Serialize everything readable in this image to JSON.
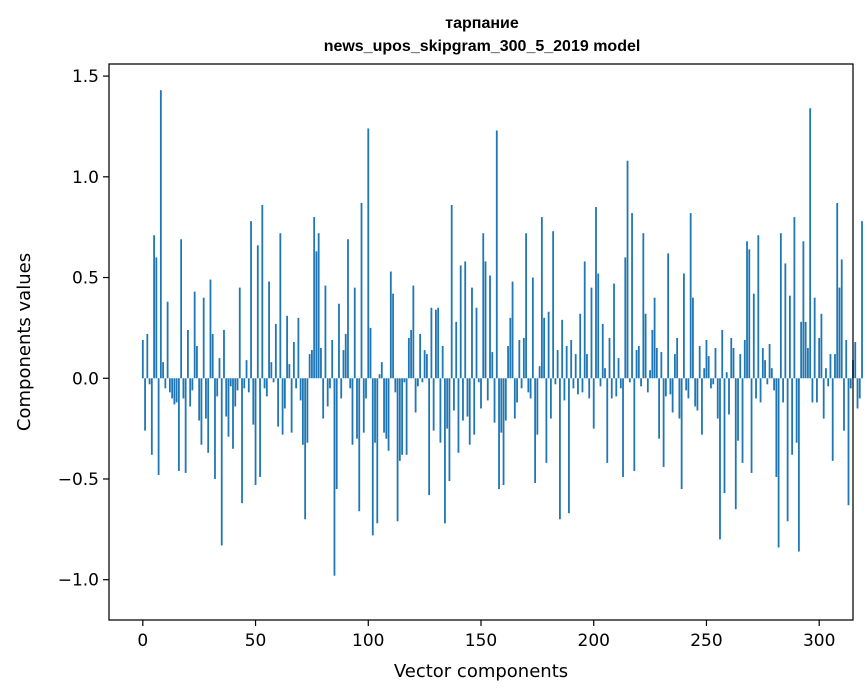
{
  "chart_data": {
    "type": "bar",
    "title": "тарпание",
    "subtitle": "news_upos_skipgram_300_5_2019 model",
    "xlabel": "Vector components",
    "ylabel": "Components values",
    "xlim": [
      -15,
      315
    ],
    "ylim": [
      -1.2,
      1.56
    ],
    "xticks": [
      0,
      50,
      100,
      150,
      200,
      250,
      300
    ],
    "xtick_labels": [
      "0",
      "50",
      "100",
      "150",
      "200",
      "250",
      "300"
    ],
    "yticks": [
      -1.0,
      -0.5,
      0.0,
      0.5,
      1.0,
      1.5
    ],
    "ytick_labels": [
      "−1.0",
      "−0.5",
      "0.0",
      "0.5",
      "1.0",
      "1.5"
    ],
    "grid": false,
    "bar_color": "#1f77b4",
    "categories_start": 0,
    "values": [
      0.19,
      -0.26,
      0.22,
      -0.03,
      -0.38,
      0.71,
      0.6,
      -0.48,
      1.43,
      0.08,
      -0.05,
      0.38,
      -0.07,
      -0.1,
      -0.13,
      -0.12,
      -0.46,
      0.69,
      -0.1,
      -0.47,
      0.24,
      -0.14,
      -0.06,
      0.43,
      0.16,
      -0.21,
      -0.33,
      0.4,
      -0.2,
      -0.37,
      0.49,
      0.22,
      -0.5,
      -0.09,
      0.1,
      -0.83,
      0.24,
      -0.19,
      -0.29,
      -0.04,
      -0.35,
      -0.14,
      -0.06,
      0.45,
      -0.62,
      -0.05,
      0.09,
      -0.07,
      0.78,
      -0.23,
      -0.53,
      0.66,
      -0.49,
      0.86,
      -0.05,
      -0.09,
      0.48,
      0.08,
      -0.02,
      0.27,
      -0.24,
      0.72,
      -0.28,
      -0.15,
      0.31,
      0.07,
      -0.27,
      0.18,
      -0.05,
      0.3,
      -0.11,
      -0.33,
      -0.7,
      -0.32,
      0.12,
      0.14,
      0.8,
      0.63,
      0.72,
      0.15,
      -0.2,
      0.46,
      -0.14,
      -0.05,
      0.19,
      -0.98,
      -0.55,
      0.37,
      -0.1,
      0.14,
      0.22,
      0.69,
      -0.05,
      -0.33,
      0.45,
      -0.3,
      -0.66,
      0.87,
      -0.27,
      -0.1,
      1.24,
      0.25,
      -0.78,
      -0.32,
      -0.72,
      0.02,
      0.08,
      -0.27,
      -0.3,
      -0.36,
      0.53,
      0.42,
      -0.07,
      -0.71,
      -0.41,
      -0.38,
      -0.02,
      -0.38,
      0.2,
      0.24,
      0.46,
      -0.17,
      -0.04,
      0.22,
      -0.02,
      0.14,
      0.12,
      -0.58,
      0.35,
      -0.26,
      0.34,
      0.35,
      -0.32,
      0.16,
      -0.72,
      -0.25,
      -0.51,
      0.86,
      -0.16,
      0.28,
      -0.37,
      0.56,
      -0.21,
      0.58,
      -0.19,
      -0.33,
      0.45,
      -0.28,
      0.35,
      -0.02,
      -0.15,
      0.72,
      0.58,
      -0.11,
      0.51,
      0.13,
      -0.22,
      1.23,
      -0.55,
      -0.27,
      -0.53,
      -0.21,
      0.16,
      0.3,
      0.48,
      -0.2,
      -0.12,
      0.19,
      -0.05,
      0.2,
      0.72,
      -0.07,
      -0.1,
      0.5,
      -0.52,
      -0.28,
      0.06,
      0.8,
      0.3,
      -0.42,
      0.33,
      -0.2,
      0.73,
      -0.03,
      0.14,
      -0.7,
      0.29,
      -0.11,
      0.16,
      -0.67,
      0.19,
      -0.05,
      0.12,
      -0.08,
      0.32,
      -0.07,
      0.58,
      0.12,
      -0.1,
      0.45,
      -0.25,
      0.85,
      0.52,
      -0.04,
      0.27,
      0.05,
      -0.42,
      0.2,
      -0.1,
      0.47,
      -0.09,
      0.1,
      -0.05,
      -0.49,
      0.6,
      1.08,
      -0.02,
      0.82,
      -0.46,
      0.14,
      0.16,
      -0.04,
      0.72,
      0.32,
      -0.07,
      0.04,
      0.24,
      0.4,
      0.15,
      -0.3,
      0.13,
      -0.44,
      -0.09,
      0.62,
      -0.08,
      -0.17,
      0.12,
      0.2,
      -0.2,
      -0.55,
      0.52,
      -0.06,
      -0.1,
      0.82,
      0.4,
      -0.14,
      -0.16,
      0.16,
      -0.28,
      0.05,
      0.19,
      0.11,
      -0.05,
      -0.03,
      0.15,
      -0.2,
      -0.8,
      0.24,
      -0.57,
      0.03,
      -0.18,
      0.2,
      0.15,
      -0.65,
      -0.31,
      0.12,
      -0.42,
      0.19,
      0.68,
      0.64,
      -0.47,
      0.42,
      -0.1,
      0.71,
      -0.12,
      0.15,
      0.09,
      -0.03,
      0.17,
      0.05,
      -0.06,
      -0.49,
      -0.84,
      0.72,
      -0.12,
      0.57,
      -0.71,
      0.41,
      -0.38,
      0.8,
      -0.32,
      -0.86,
      0.28,
      0.68,
      0.28,
      0.15,
      1.34,
      -0.12,
      0.4,
      -0.12
    ],
    "extra_values_note_free": [
      0.2,
      0.32,
      -0.2,
      0.05,
      -0.04,
      0.12,
      -0.41,
      0.12,
      0.87,
      0.45,
      0.59,
      -0.26,
      0.19,
      -0.63,
      -0.05,
      0.09,
      0.18,
      -0.15,
      -0.1,
      0.78
    ]
  }
}
